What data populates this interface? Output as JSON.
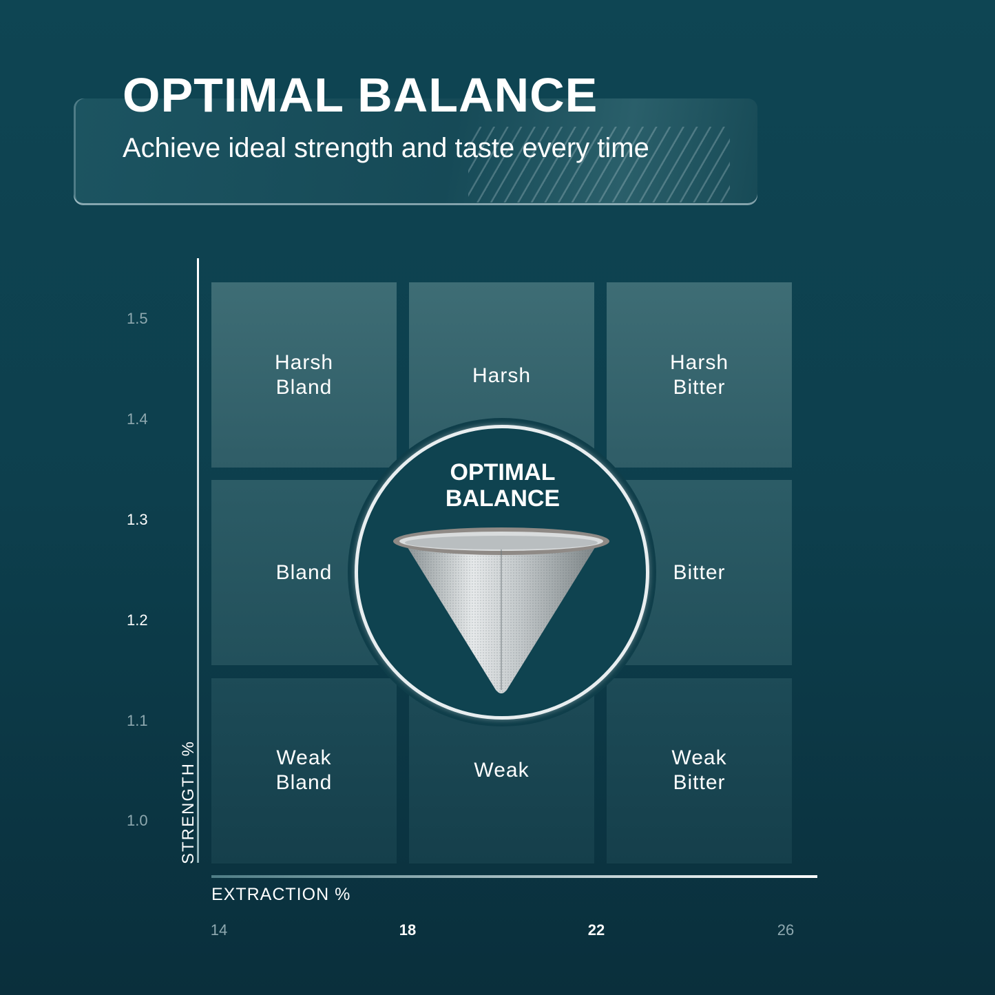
{
  "header": {
    "title": "OPTIMAL BALANCE",
    "subtitle": "Achieve ideal strength and taste every time"
  },
  "chart_data": {
    "type": "table",
    "title": "",
    "xlabel": "EXTRACTION %",
    "ylabel": "STRENGTH %",
    "x_ticks": [
      "14",
      "18",
      "22",
      "26"
    ],
    "y_ticks": [
      "1.5",
      "1.4",
      "1.3",
      "1.2",
      "1.1",
      "1.0"
    ],
    "xlim": [
      14,
      26
    ],
    "ylim": [
      1.0,
      1.5
    ],
    "grid_rows": [
      [
        "Harsh\nBland",
        "Harsh",
        "Harsh\nBitter"
      ],
      [
        "Bland",
        "",
        "Bitter"
      ],
      [
        "Weak\nBland",
        "Weak",
        "Weak\nBitter"
      ]
    ],
    "highlight": {
      "label": "OPTIMAL\nBALANCE",
      "x_range": [
        18,
        22
      ],
      "y_range": [
        1.2,
        1.3
      ]
    }
  },
  "colors": {
    "background": "#0e4553",
    "ring": "#e8eef0",
    "text": "#ffffff",
    "muted_tick": "#8fa9b0"
  },
  "icons": {
    "product": "stainless-steel-pour-over-cone-filter"
  }
}
